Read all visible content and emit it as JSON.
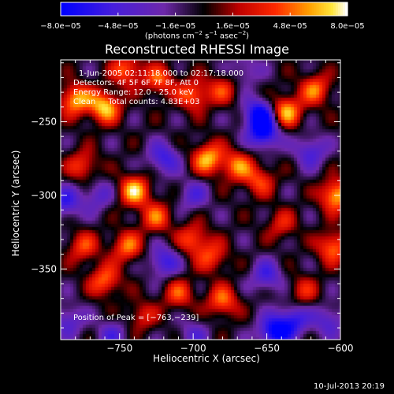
{
  "chart_data": {
    "type": "heatmap",
    "title": "Reconstructed RHESSI Image",
    "xlabel": "Heliocentric X (arcsec)",
    "ylabel": "Heliocentric Y (arcsec)",
    "xlim": [
      -790,
      -600
    ],
    "ylim": [
      -398,
      -208
    ],
    "x_ticks": [
      -750,
      -700,
      -650,
      -600
    ],
    "y_ticks": [
      -250,
      -300,
      -350
    ],
    "x_tick_labels": [
      "−750",
      "−700",
      "−650",
      "−600"
    ],
    "y_tick_labels": [
      "−250",
      "−300",
      "−350"
    ],
    "colorbar": {
      "min": -8e-05,
      "max": 8e-05,
      "tick_labels": [
        "−8.0e−05",
        "−4.8e−05",
        "−1.6e−05",
        "1.6e−05",
        "4.8e−05",
        "8.0e−05"
      ],
      "unit_text": "(photons cm",
      "unit_parts": [
        "(photons cm",
        "−2",
        " s",
        "−1",
        " asec",
        "−2",
        ")"
      ]
    },
    "annotations": [
      "1-Jun-2005 02:11:18.000 to 02:17:18.000",
      "Detectors: 4F 5F 6F 7F 8F, Att 0",
      "Energy Range: 12.0 - 25.0 keV",
      "Clean     Total counts: 4.83E+03"
    ],
    "peak_label": "Position of Peak = [−763,−239]",
    "peak_position": [
      -763,
      -239
    ],
    "blobs": [
      {
        "x": -780,
        "y": -235,
        "v": 7e-05
      },
      {
        "x": -760,
        "y": -240,
        "v": 7.6e-05
      },
      {
        "x": -745,
        "y": -215,
        "v": 5.5e-05
      },
      {
        "x": -723,
        "y": -222,
        "v": 5e-05
      },
      {
        "x": -700,
        "y": -232,
        "v": 5.5e-05
      },
      {
        "x": -680,
        "y": -228,
        "v": 4e-05
      },
      {
        "x": -637,
        "y": -243,
        "v": 7e-05
      },
      {
        "x": -617,
        "y": -228,
        "v": 5.5e-05
      },
      {
        "x": -603,
        "y": -300,
        "v": 7.5e-05
      },
      {
        "x": -605,
        "y": -335,
        "v": 6e-05
      },
      {
        "x": -690,
        "y": -275,
        "v": 7e-05
      },
      {
        "x": -670,
        "y": -280,
        "v": 5.5e-05
      },
      {
        "x": -655,
        "y": -290,
        "v": 4.5e-05
      },
      {
        "x": -740,
        "y": -297,
        "v": 7.2e-05
      },
      {
        "x": -725,
        "y": -315,
        "v": 5e-05
      },
      {
        "x": -775,
        "y": -280,
        "v": 4.5e-05
      },
      {
        "x": -745,
        "y": -335,
        "v": 5.5e-05
      },
      {
        "x": -760,
        "y": -358,
        "v": 5.5e-05
      },
      {
        "x": -700,
        "y": -330,
        "v": 5e-05
      },
      {
        "x": -687,
        "y": -342,
        "v": 4.5e-05
      },
      {
        "x": -710,
        "y": -367,
        "v": 4.5e-05
      },
      {
        "x": -680,
        "y": -372,
        "v": 5.5e-05
      },
      {
        "x": -775,
        "y": -335,
        "v": 4.5e-05
      },
      {
        "x": -640,
        "y": -320,
        "v": 3.5e-05
      },
      {
        "x": -735,
        "y": -382,
        "v": 3.5e-05
      },
      {
        "x": -625,
        "y": -365,
        "v": 3.5e-05
      },
      {
        "x": -655,
        "y": -245,
        "v": -7.5e-05
      },
      {
        "x": -652,
        "y": -258,
        "v": -7e-05
      },
      {
        "x": -720,
        "y": -275,
        "v": -5e-05
      },
      {
        "x": -787,
        "y": -305,
        "v": -5e-05
      },
      {
        "x": -720,
        "y": -345,
        "v": -5e-05
      },
      {
        "x": -765,
        "y": -300,
        "v": -3.5e-05
      },
      {
        "x": -645,
        "y": -393,
        "v": -7.5e-05
      },
      {
        "x": -632,
        "y": -385,
        "v": -5.5e-05
      },
      {
        "x": -650,
        "y": -355,
        "v": -4.5e-05
      },
      {
        "x": -620,
        "y": -270,
        "v": -4.5e-05
      },
      {
        "x": -608,
        "y": -385,
        "v": -4e-05
      },
      {
        "x": -700,
        "y": -300,
        "v": -3.5e-05
      },
      {
        "x": -755,
        "y": -395,
        "v": -3.5e-05
      },
      {
        "x": -785,
        "y": -385,
        "v": -4e-05
      },
      {
        "x": -700,
        "y": -395,
        "v": -3e-05
      },
      {
        "x": -665,
        "y": -215,
        "v": -3e-05
      }
    ],
    "blob_sigma": 7.5,
    "grid": false
  },
  "footer": {
    "date": "10-Jul-2013 20:19"
  }
}
